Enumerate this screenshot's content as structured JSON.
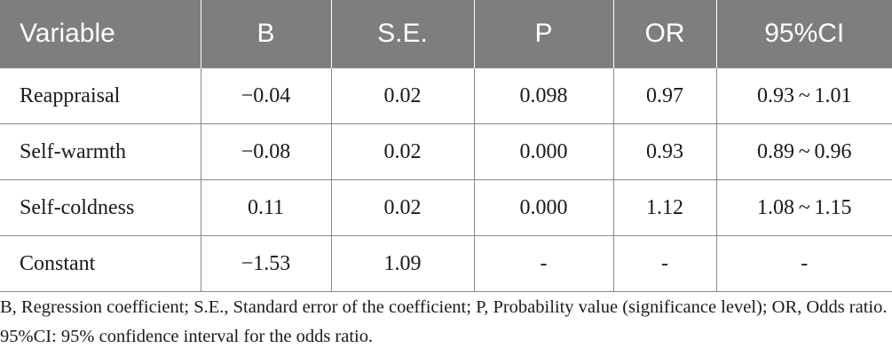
{
  "table": {
    "headers": [
      "Variable",
      "B",
      "S.E.",
      "P",
      "OR",
      "95%CI"
    ],
    "rows": [
      [
        "Reappraisal",
        "−0.04",
        "0.02",
        "0.098",
        "0.97",
        "0.93 ~ 1.01"
      ],
      [
        "Self-warmth",
        "−0.08",
        "0.02",
        "0.000",
        "0.93",
        "0.89 ~ 0.96"
      ],
      [
        "Self-coldness",
        "0.11",
        "0.02",
        "0.000",
        "1.12",
        "1.08 ~ 1.15"
      ],
      [
        "Constant",
        "−1.53",
        "1.09",
        "-",
        "-",
        "-"
      ]
    ]
  },
  "footnote": "B, Regression coefficient; S.E., Standard error of the coefficient; P, Probability value (significance level); OR, Odds ratio. 95%CI: 95% confidence interval for the odds ratio."
}
